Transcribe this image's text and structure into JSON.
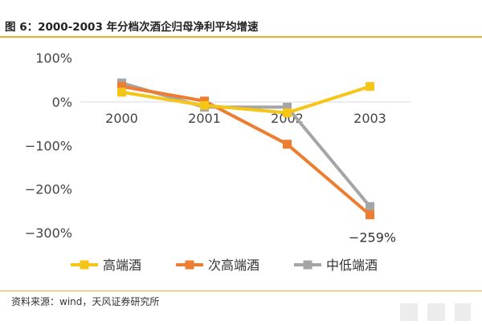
{
  "title": "图 6：2000-2003 年分档次酒企归母净利平均增速",
  "source": "资料来源：wind，天风证券研究所",
  "chart_data": {
    "type": "line",
    "categories": [
      "2000",
      "2001",
      "2002",
      "2003"
    ],
    "ylim": [
      -300,
      100
    ],
    "yticks": [
      100,
      0,
      -100,
      -200,
      -300
    ],
    "ytick_labels": [
      "100%",
      "0%",
      "-100%",
      "-200%",
      "-300%"
    ],
    "grid": false,
    "legend_position": "bottom",
    "series": [
      {
        "name": "高端酒",
        "values": [
          22,
          -8,
          -25,
          35
        ],
        "color": "#f5c518"
      },
      {
        "name": "次高端酒",
        "values": [
          35,
          2,
          -97,
          -259
        ],
        "color": "#ed7d31"
      },
      {
        "name": "中低端酒",
        "values": [
          43,
          -12,
          -12,
          -240
        ],
        "color": "#a5a5a5"
      }
    ],
    "annotations": [
      {
        "text": "-259%",
        "series": 1,
        "index": 3
      }
    ]
  }
}
